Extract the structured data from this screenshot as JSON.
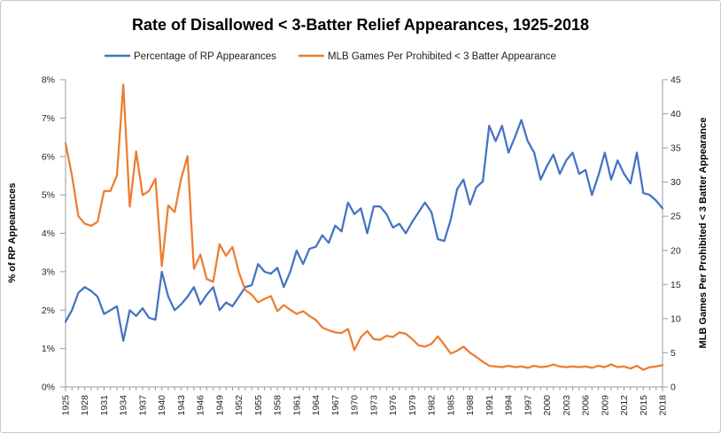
{
  "frame": {
    "background": "#FFFFFF",
    "border_color": "#C9C9C9",
    "axis_color": "#9B9B9B",
    "tick_text_color": "#262626",
    "title_color": "#000000"
  },
  "chart_data": {
    "type": "line",
    "title": "Rate of Disallowed < 3-Batter Relief Appearances, 1925-2018",
    "legend_position": "top",
    "grid": false,
    "x": [
      1925,
      1926,
      1927,
      1928,
      1929,
      1930,
      1931,
      1932,
      1933,
      1934,
      1935,
      1936,
      1937,
      1938,
      1939,
      1940,
      1941,
      1942,
      1943,
      1944,
      1945,
      1946,
      1947,
      1948,
      1949,
      1950,
      1951,
      1952,
      1953,
      1954,
      1955,
      1956,
      1957,
      1958,
      1959,
      1960,
      1961,
      1962,
      1963,
      1964,
      1965,
      1966,
      1967,
      1968,
      1969,
      1970,
      1971,
      1972,
      1973,
      1974,
      1975,
      1976,
      1977,
      1978,
      1979,
      1980,
      1981,
      1982,
      1983,
      1984,
      1985,
      1986,
      1987,
      1988,
      1989,
      1990,
      1991,
      1992,
      1993,
      1994,
      1995,
      1996,
      1997,
      1998,
      1999,
      2000,
      2001,
      2002,
      2003,
      2004,
      2005,
      2006,
      2007,
      2008,
      2009,
      2010,
      2011,
      2012,
      2013,
      2014,
      2015,
      2016,
      2017,
      2018
    ],
    "x_axis": {
      "tick_label_interval": 3,
      "minor_tick_interval": 1,
      "tick_labels": [
        "1925",
        "1928",
        "1931",
        "1934",
        "1937",
        "1940",
        "1943",
        "1946",
        "1949",
        "1952",
        "1955",
        "1958",
        "1961",
        "1964",
        "1967",
        "1970",
        "1973",
        "1976",
        "1979",
        "1982",
        "1985",
        "1988",
        "1991",
        "1994",
        "1997",
        "2000",
        "2003",
        "2006",
        "2009",
        "2012",
        "2015",
        "2018"
      ]
    },
    "left_axis": {
      "label": "% of RP Appearances",
      "min": 0,
      "max": 8,
      "step": 1,
      "tick_labels": [
        "0%",
        "1%",
        "2%",
        "3%",
        "4%",
        "5%",
        "6%",
        "7%",
        "8%"
      ]
    },
    "right_axis": {
      "label": "MLB Games Per Prohibited < 3 Batter Appearance",
      "min": 0,
      "max": 45,
      "step": 5,
      "tick_labels": [
        "0",
        "5",
        "10",
        "15",
        "20",
        "25",
        "30",
        "35",
        "40",
        "45"
      ]
    },
    "series": [
      {
        "name": "Percentage of RP Appearances",
        "color": "#4472C4",
        "axis": "left",
        "unit": "%",
        "values": [
          1.7,
          2.0,
          2.45,
          2.6,
          2.5,
          2.35,
          1.9,
          2.0,
          2.1,
          1.2,
          2.0,
          1.85,
          2.05,
          1.8,
          1.75,
          3.0,
          2.35,
          2.0,
          2.15,
          2.35,
          2.6,
          2.15,
          2.4,
          2.6,
          2.0,
          2.2,
          2.1,
          2.35,
          2.6,
          2.65,
          3.2,
          3.0,
          2.95,
          3.1,
          2.6,
          3.0,
          3.55,
          3.2,
          3.6,
          3.65,
          3.95,
          3.75,
          4.2,
          4.05,
          4.8,
          4.5,
          4.65,
          4.0,
          4.7,
          4.7,
          4.5,
          4.15,
          4.25,
          4.0,
          4.3,
          4.55,
          4.8,
          4.55,
          3.85,
          3.8,
          4.35,
          5.15,
          5.4,
          4.75,
          5.2,
          5.35,
          6.8,
          6.4,
          6.8,
          6.1,
          6.5,
          6.95,
          6.4,
          6.1,
          5.4,
          5.75,
          6.05,
          5.55,
          5.9,
          6.1,
          5.55,
          5.65,
          5.0,
          5.5,
          6.1,
          5.4,
          5.9,
          5.55,
          5.3,
          6.1,
          5.05,
          5.0,
          4.85,
          4.65
        ]
      },
      {
        "name": "MLB Games Per Prohibited < 3 Batter Appearance",
        "color": "#ED7D31",
        "axis": "right",
        "unit": "games",
        "values": [
          35.7,
          31.0,
          25.0,
          23.9,
          23.6,
          24.2,
          28.7,
          28.7,
          31.0,
          44.3,
          26.4,
          34.5,
          28.1,
          28.7,
          30.5,
          17.7,
          26.6,
          25.6,
          30.5,
          33.8,
          17.3,
          19.4,
          15.8,
          15.4,
          20.9,
          19.2,
          20.5,
          16.8,
          14.2,
          13.5,
          12.4,
          12.9,
          13.3,
          11.1,
          12.0,
          11.3,
          10.7,
          11.1,
          10.4,
          9.8,
          8.7,
          8.3,
          8.0,
          7.9,
          8.5,
          5.4,
          7.3,
          8.2,
          7.0,
          6.9,
          7.5,
          7.3,
          8.0,
          7.8,
          7.0,
          6.1,
          5.9,
          6.3,
          7.4,
          6.2,
          4.9,
          5.3,
          5.9,
          5.0,
          4.4,
          3.7,
          3.1,
          3.0,
          2.9,
          3.1,
          2.9,
          3.0,
          2.8,
          3.1,
          2.9,
          3.0,
          3.3,
          3.0,
          2.9,
          3.0,
          2.9,
          3.0,
          2.8,
          3.1,
          2.9,
          3.3,
          2.9,
          3.0,
          2.7,
          3.1,
          2.5,
          2.9,
          3.0,
          3.2
        ]
      }
    ]
  }
}
